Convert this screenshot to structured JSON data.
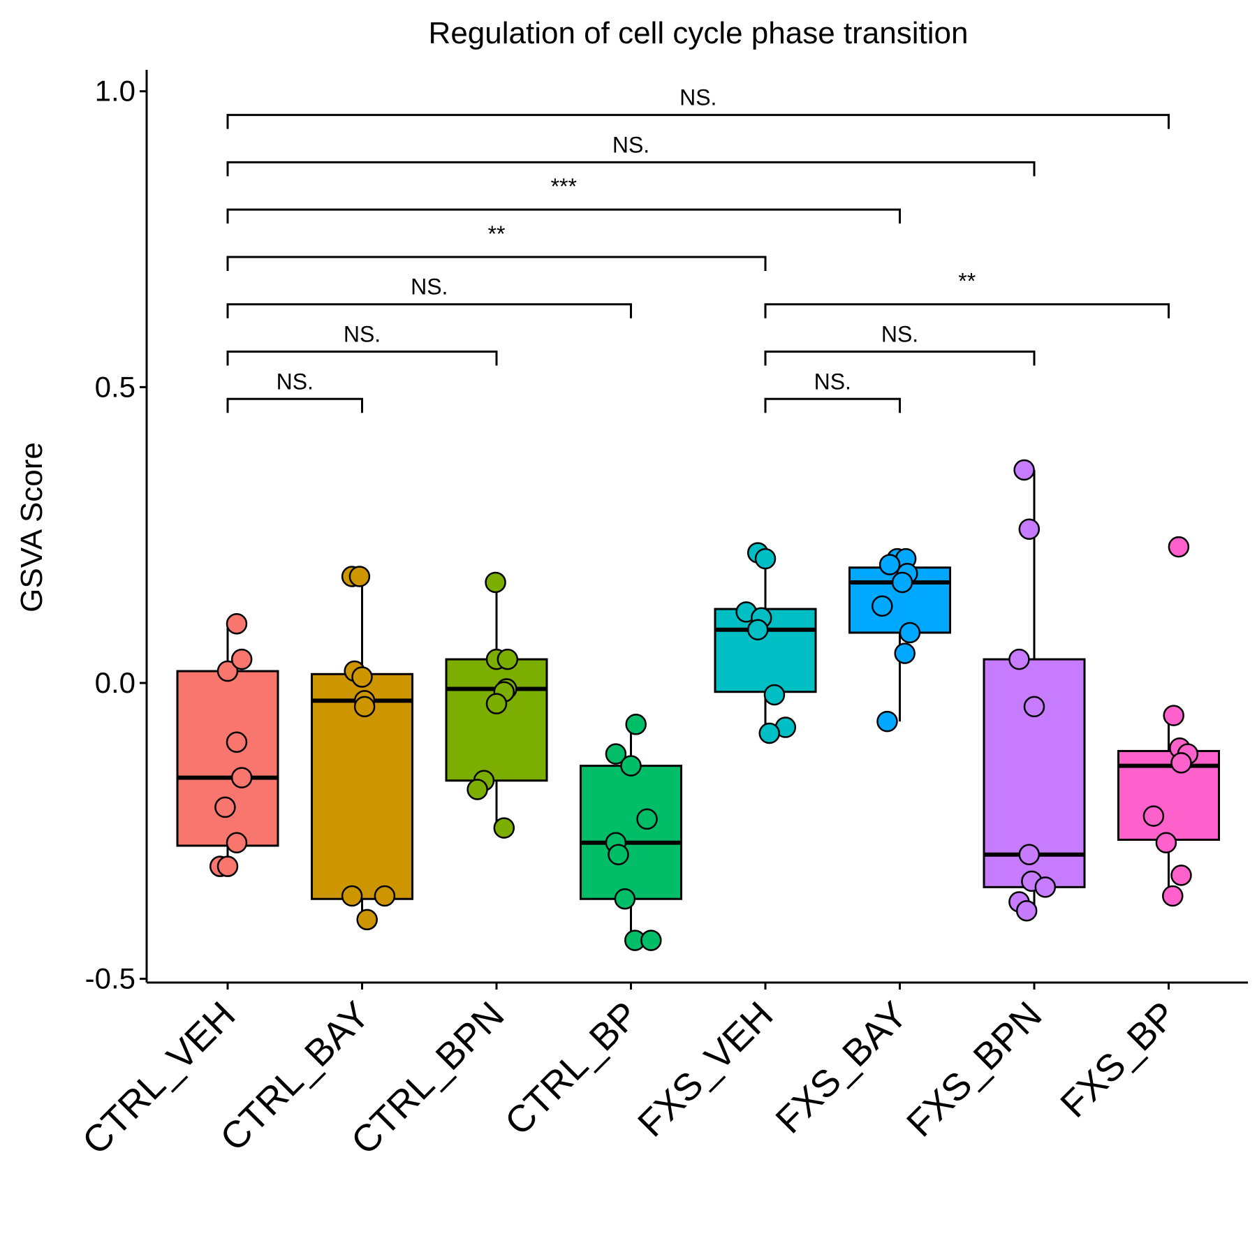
{
  "chart_data": {
    "type": "box",
    "title": "Regulation of cell cycle phase transition",
    "xlabel": "",
    "ylabel": "GSVA Score",
    "ylim": [
      -0.5,
      1.0
    ],
    "yticks": [
      -0.5,
      0.0,
      0.5,
      1.0
    ],
    "ytick_labels": [
      "-0.5",
      "0.0",
      "0.5",
      "1.0"
    ],
    "legend": "none",
    "grid": false,
    "groups": [
      {
        "name": "CTRL_VEH",
        "color": "#F8766D",
        "q1": -0.275,
        "median": -0.16,
        "q3": 0.02,
        "whisker_low": -0.315,
        "whisker_high": 0.095,
        "points": [
          [
            0.18,
            0.1
          ],
          [
            0.0,
            0.02
          ],
          [
            0.28,
            0.04
          ],
          [
            0.18,
            -0.1
          ],
          [
            0.28,
            -0.16
          ],
          [
            -0.05,
            -0.21
          ],
          [
            0.18,
            -0.27
          ],
          [
            -0.15,
            -0.31
          ],
          [
            0.0,
            -0.31
          ]
        ]
      },
      {
        "name": "CTRL_BAY",
        "color": "#CD9600",
        "q1": -0.365,
        "median": -0.03,
        "q3": 0.015,
        "whisker_low": -0.4,
        "whisker_high": 0.18,
        "points": [
          [
            -0.2,
            0.18
          ],
          [
            -0.05,
            0.18
          ],
          [
            -0.15,
            0.02
          ],
          [
            0.0,
            0.01
          ],
          [
            0.05,
            -0.03
          ],
          [
            0.05,
            -0.04
          ],
          [
            -0.2,
            -0.36
          ],
          [
            0.45,
            -0.36
          ],
          [
            0.1,
            -0.4
          ]
        ]
      },
      {
        "name": "CTRL_BPN",
        "color": "#7CAE00",
        "q1": -0.165,
        "median": -0.01,
        "q3": 0.04,
        "whisker_low": -0.245,
        "whisker_high": 0.17,
        "points": [
          [
            -0.02,
            0.17
          ],
          [
            0.0,
            0.04
          ],
          [
            0.22,
            0.04
          ],
          [
            0.2,
            -0.01
          ],
          [
            0.15,
            -0.015
          ],
          [
            0.0,
            -0.035
          ],
          [
            -0.25,
            -0.165
          ],
          [
            -0.38,
            -0.18
          ],
          [
            0.15,
            -0.245
          ]
        ]
      },
      {
        "name": "CTRL_BP",
        "color": "#00BE67",
        "q1": -0.365,
        "median": -0.27,
        "q3": -0.14,
        "whisker_low": -0.435,
        "whisker_high": -0.07,
        "points": [
          [
            0.1,
            -0.07
          ],
          [
            -0.3,
            -0.12
          ],
          [
            0.0,
            -0.14
          ],
          [
            0.32,
            -0.23
          ],
          [
            -0.3,
            -0.27
          ],
          [
            -0.25,
            -0.29
          ],
          [
            -0.12,
            -0.365
          ],
          [
            0.08,
            -0.435
          ],
          [
            0.4,
            -0.435
          ]
        ]
      },
      {
        "name": "FXS_VEH",
        "color": "#00BFC4",
        "q1": -0.015,
        "median": 0.09,
        "q3": 0.125,
        "whisker_low": -0.085,
        "whisker_high": 0.22,
        "points": [
          [
            -0.15,
            0.22
          ],
          [
            0.0,
            0.21
          ],
          [
            -0.38,
            0.12
          ],
          [
            -0.08,
            0.11
          ],
          [
            -0.15,
            0.09
          ],
          [
            0.18,
            -0.02
          ],
          [
            0.4,
            -0.075
          ],
          [
            0.08,
            -0.085
          ]
        ]
      },
      {
        "name": "FXS_BAY",
        "color": "#00A9FF",
        "q1": 0.085,
        "median": 0.17,
        "q3": 0.195,
        "whisker_low": -0.065,
        "whisker_high": 0.21,
        "points": [
          [
            -0.05,
            0.21
          ],
          [
            0.12,
            0.21
          ],
          [
            -0.2,
            0.2
          ],
          [
            0.15,
            0.185
          ],
          [
            0.05,
            0.17
          ],
          [
            -0.35,
            0.13
          ],
          [
            0.2,
            0.085
          ],
          [
            0.1,
            0.05
          ],
          [
            -0.25,
            -0.065
          ]
        ]
      },
      {
        "name": "FXS_BPN",
        "color": "#C77CFF",
        "q1": -0.345,
        "median": -0.29,
        "q3": 0.04,
        "whisker_low": -0.38,
        "whisker_high": 0.36,
        "points": [
          [
            -0.2,
            0.36
          ],
          [
            -0.1,
            0.26
          ],
          [
            -0.3,
            0.04
          ],
          [
            0.0,
            -0.04
          ],
          [
            -0.1,
            -0.29
          ],
          [
            -0.05,
            -0.335
          ],
          [
            0.22,
            -0.345
          ],
          [
            -0.3,
            -0.37
          ],
          [
            -0.15,
            -0.385
          ]
        ]
      },
      {
        "name": "FXS_BP",
        "color": "#FF61CC",
        "q1": -0.265,
        "median": -0.14,
        "q3": -0.115,
        "whisker_low": -0.36,
        "whisker_h": 0,
        "whisker_high": -0.055,
        "points": [
          [
            0.2,
            0.23
          ],
          [
            0.1,
            -0.055
          ],
          [
            0.22,
            -0.11
          ],
          [
            0.38,
            -0.12
          ],
          [
            0.25,
            -0.135
          ],
          [
            -0.3,
            -0.225
          ],
          [
            -0.05,
            -0.27
          ],
          [
            0.25,
            -0.325
          ],
          [
            0.08,
            -0.36
          ]
        ]
      }
    ],
    "comparisons": [
      {
        "from": "CTRL_VEH",
        "to": "CTRL_BAY",
        "label": "NS.",
        "y": 0.48
      },
      {
        "from": "CTRL_VEH",
        "to": "CTRL_BPN",
        "label": "NS.",
        "y": 0.56
      },
      {
        "from": "CTRL_VEH",
        "to": "CTRL_BP",
        "label": "NS.",
        "y": 0.64
      },
      {
        "from": "CTRL_VEH",
        "to": "FXS_VEH",
        "label": "**",
        "y": 0.72
      },
      {
        "from": "CTRL_VEH",
        "to": "FXS_BAY",
        "label": "***",
        "y": 0.8
      },
      {
        "from": "CTRL_VEH",
        "to": "FXS_BPN",
        "label": "NS.",
        "y": 0.88
      },
      {
        "from": "CTRL_VEH",
        "to": "FXS_BP",
        "label": "NS.",
        "y": 0.96
      },
      {
        "from": "FXS_VEH",
        "to": "FXS_BAY",
        "label": "NS.",
        "y": 0.48
      },
      {
        "from": "FXS_VEH",
        "to": "FXS_BPN",
        "label": "NS.",
        "y": 0.56
      },
      {
        "from": "FXS_VEH",
        "to": "FXS_BP",
        "label": "**",
        "y": 0.64
      }
    ]
  }
}
